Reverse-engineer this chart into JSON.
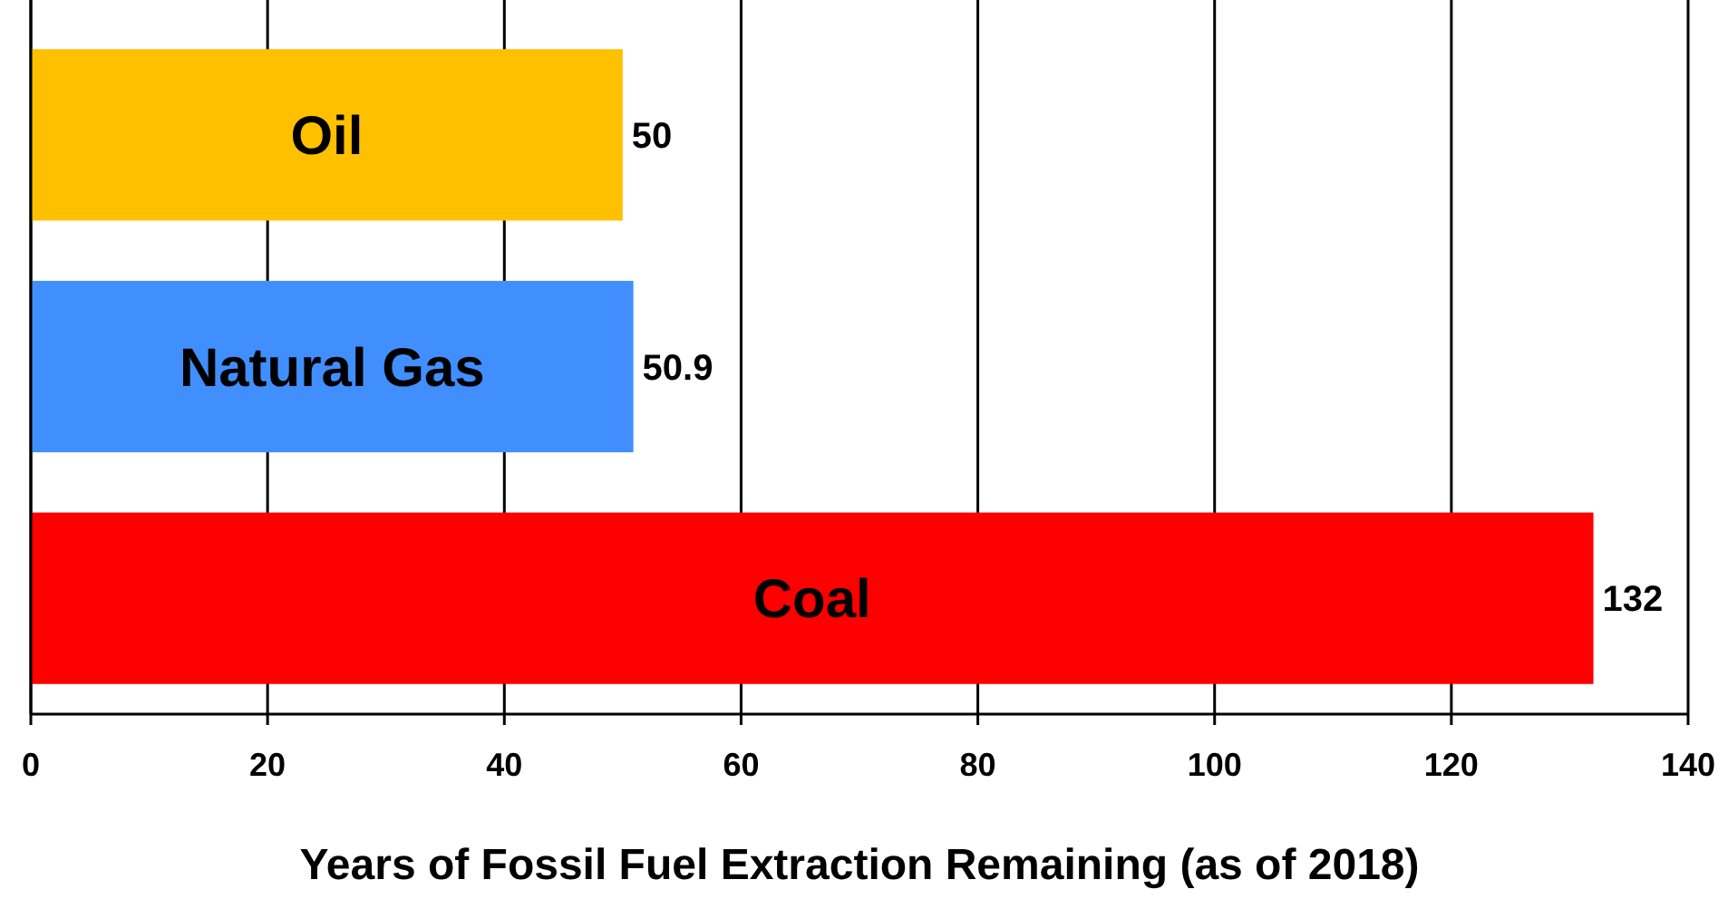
{
  "chart_data": {
    "type": "bar",
    "orientation": "horizontal",
    "xlabel": "Years of Fossil Fuel Extraction Remaining (as of 2018)",
    "categories": [
      "Oil",
      "Natural Gas",
      "Coal"
    ],
    "values": [
      50,
      50.9,
      132
    ],
    "colors": [
      "#ffc000",
      "#418fff",
      "#ff0000"
    ],
    "xlim": [
      0,
      140
    ],
    "xticks": [
      0,
      20,
      40,
      60,
      80,
      100,
      120,
      140
    ],
    "grid": "x",
    "data_labels": true
  }
}
